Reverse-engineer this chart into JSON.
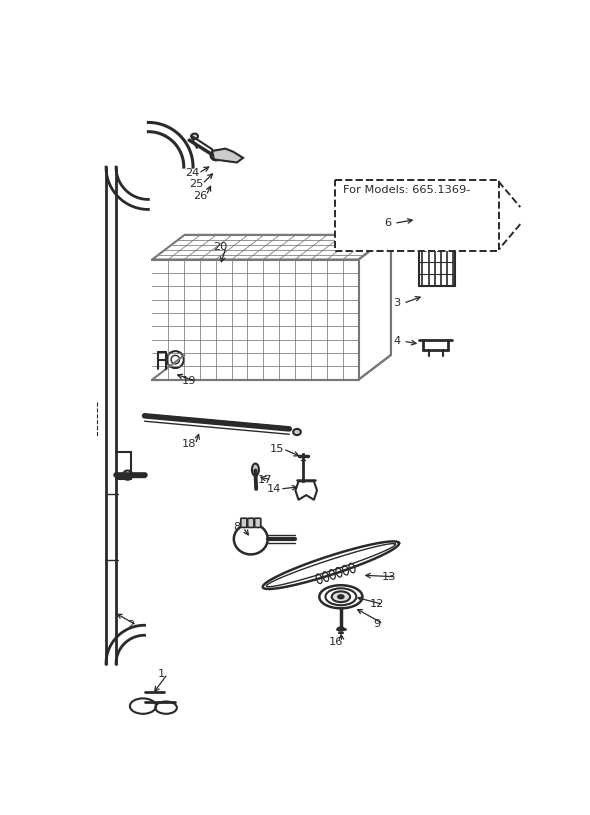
{
  "bg_color": "#ffffff",
  "line_color": "#2a2a2a",
  "gray_color": "#777777",
  "light_gray": "#aaaaaa",
  "model_box_text": "For Models: 665.1369-",
  "labels": [
    [
      1,
      112,
      748,
      100,
      775
    ],
    [
      2,
      72,
      685,
      50,
      668
    ],
    [
      3,
      418,
      267,
      453,
      257
    ],
    [
      4,
      418,
      316,
      448,
      320
    ],
    [
      6,
      406,
      163,
      443,
      158
    ],
    [
      8,
      210,
      558,
      228,
      572
    ],
    [
      9,
      392,
      683,
      362,
      662
    ],
    [
      12,
      392,
      658,
      362,
      648
    ],
    [
      13,
      408,
      622,
      372,
      620
    ],
    [
      14,
      258,
      508,
      293,
      505
    ],
    [
      15,
      262,
      456,
      295,
      467
    ],
    [
      16,
      338,
      707,
      345,
      692
    ],
    [
      17,
      247,
      496,
      236,
      492
    ],
    [
      18,
      148,
      450,
      162,
      432
    ],
    [
      19,
      148,
      368,
      128,
      358
    ],
    [
      20,
      188,
      194,
      188,
      218
    ],
    [
      24,
      152,
      98,
      178,
      87
    ],
    [
      25,
      157,
      112,
      182,
      95
    ],
    [
      26,
      162,
      127,
      178,
      110
    ]
  ]
}
